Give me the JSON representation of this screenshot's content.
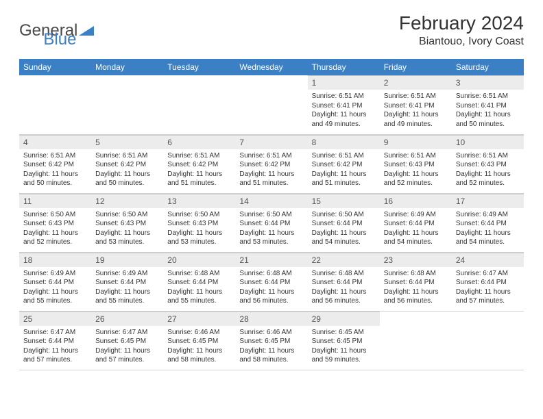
{
  "logo": {
    "text1": "General",
    "text2": "Blue"
  },
  "title": "February 2024",
  "location": "Biantouo, Ivory Coast",
  "colors": {
    "header_bg": "#3b7fc4",
    "header_fg": "#ffffff",
    "daynum_bg": "#ececec",
    "border": "#c8c8c8",
    "text": "#333333",
    "page_bg": "#ffffff"
  },
  "weekdays": [
    "Sunday",
    "Monday",
    "Tuesday",
    "Wednesday",
    "Thursday",
    "Friday",
    "Saturday"
  ],
  "weeks": [
    [
      {
        "n": "",
        "l1": "",
        "l2": "",
        "l3": "",
        "l4": ""
      },
      {
        "n": "",
        "l1": "",
        "l2": "",
        "l3": "",
        "l4": ""
      },
      {
        "n": "",
        "l1": "",
        "l2": "",
        "l3": "",
        "l4": ""
      },
      {
        "n": "",
        "l1": "",
        "l2": "",
        "l3": "",
        "l4": ""
      },
      {
        "n": "1",
        "l1": "Sunrise: 6:51 AM",
        "l2": "Sunset: 6:41 PM",
        "l3": "Daylight: 11 hours",
        "l4": "and 49 minutes."
      },
      {
        "n": "2",
        "l1": "Sunrise: 6:51 AM",
        "l2": "Sunset: 6:41 PM",
        "l3": "Daylight: 11 hours",
        "l4": "and 49 minutes."
      },
      {
        "n": "3",
        "l1": "Sunrise: 6:51 AM",
        "l2": "Sunset: 6:41 PM",
        "l3": "Daylight: 11 hours",
        "l4": "and 50 minutes."
      }
    ],
    [
      {
        "n": "4",
        "l1": "Sunrise: 6:51 AM",
        "l2": "Sunset: 6:42 PM",
        "l3": "Daylight: 11 hours",
        "l4": "and 50 minutes."
      },
      {
        "n": "5",
        "l1": "Sunrise: 6:51 AM",
        "l2": "Sunset: 6:42 PM",
        "l3": "Daylight: 11 hours",
        "l4": "and 50 minutes."
      },
      {
        "n": "6",
        "l1": "Sunrise: 6:51 AM",
        "l2": "Sunset: 6:42 PM",
        "l3": "Daylight: 11 hours",
        "l4": "and 51 minutes."
      },
      {
        "n": "7",
        "l1": "Sunrise: 6:51 AM",
        "l2": "Sunset: 6:42 PM",
        "l3": "Daylight: 11 hours",
        "l4": "and 51 minutes."
      },
      {
        "n": "8",
        "l1": "Sunrise: 6:51 AM",
        "l2": "Sunset: 6:42 PM",
        "l3": "Daylight: 11 hours",
        "l4": "and 51 minutes."
      },
      {
        "n": "9",
        "l1": "Sunrise: 6:51 AM",
        "l2": "Sunset: 6:43 PM",
        "l3": "Daylight: 11 hours",
        "l4": "and 52 minutes."
      },
      {
        "n": "10",
        "l1": "Sunrise: 6:51 AM",
        "l2": "Sunset: 6:43 PM",
        "l3": "Daylight: 11 hours",
        "l4": "and 52 minutes."
      }
    ],
    [
      {
        "n": "11",
        "l1": "Sunrise: 6:50 AM",
        "l2": "Sunset: 6:43 PM",
        "l3": "Daylight: 11 hours",
        "l4": "and 52 minutes."
      },
      {
        "n": "12",
        "l1": "Sunrise: 6:50 AM",
        "l2": "Sunset: 6:43 PM",
        "l3": "Daylight: 11 hours",
        "l4": "and 53 minutes."
      },
      {
        "n": "13",
        "l1": "Sunrise: 6:50 AM",
        "l2": "Sunset: 6:43 PM",
        "l3": "Daylight: 11 hours",
        "l4": "and 53 minutes."
      },
      {
        "n": "14",
        "l1": "Sunrise: 6:50 AM",
        "l2": "Sunset: 6:44 PM",
        "l3": "Daylight: 11 hours",
        "l4": "and 53 minutes."
      },
      {
        "n": "15",
        "l1": "Sunrise: 6:50 AM",
        "l2": "Sunset: 6:44 PM",
        "l3": "Daylight: 11 hours",
        "l4": "and 54 minutes."
      },
      {
        "n": "16",
        "l1": "Sunrise: 6:49 AM",
        "l2": "Sunset: 6:44 PM",
        "l3": "Daylight: 11 hours",
        "l4": "and 54 minutes."
      },
      {
        "n": "17",
        "l1": "Sunrise: 6:49 AM",
        "l2": "Sunset: 6:44 PM",
        "l3": "Daylight: 11 hours",
        "l4": "and 54 minutes."
      }
    ],
    [
      {
        "n": "18",
        "l1": "Sunrise: 6:49 AM",
        "l2": "Sunset: 6:44 PM",
        "l3": "Daylight: 11 hours",
        "l4": "and 55 minutes."
      },
      {
        "n": "19",
        "l1": "Sunrise: 6:49 AM",
        "l2": "Sunset: 6:44 PM",
        "l3": "Daylight: 11 hours",
        "l4": "and 55 minutes."
      },
      {
        "n": "20",
        "l1": "Sunrise: 6:48 AM",
        "l2": "Sunset: 6:44 PM",
        "l3": "Daylight: 11 hours",
        "l4": "and 55 minutes."
      },
      {
        "n": "21",
        "l1": "Sunrise: 6:48 AM",
        "l2": "Sunset: 6:44 PM",
        "l3": "Daylight: 11 hours",
        "l4": "and 56 minutes."
      },
      {
        "n": "22",
        "l1": "Sunrise: 6:48 AM",
        "l2": "Sunset: 6:44 PM",
        "l3": "Daylight: 11 hours",
        "l4": "and 56 minutes."
      },
      {
        "n": "23",
        "l1": "Sunrise: 6:48 AM",
        "l2": "Sunset: 6:44 PM",
        "l3": "Daylight: 11 hours",
        "l4": "and 56 minutes."
      },
      {
        "n": "24",
        "l1": "Sunrise: 6:47 AM",
        "l2": "Sunset: 6:44 PM",
        "l3": "Daylight: 11 hours",
        "l4": "and 57 minutes."
      }
    ],
    [
      {
        "n": "25",
        "l1": "Sunrise: 6:47 AM",
        "l2": "Sunset: 6:44 PM",
        "l3": "Daylight: 11 hours",
        "l4": "and 57 minutes."
      },
      {
        "n": "26",
        "l1": "Sunrise: 6:47 AM",
        "l2": "Sunset: 6:45 PM",
        "l3": "Daylight: 11 hours",
        "l4": "and 57 minutes."
      },
      {
        "n": "27",
        "l1": "Sunrise: 6:46 AM",
        "l2": "Sunset: 6:45 PM",
        "l3": "Daylight: 11 hours",
        "l4": "and 58 minutes."
      },
      {
        "n": "28",
        "l1": "Sunrise: 6:46 AM",
        "l2": "Sunset: 6:45 PM",
        "l3": "Daylight: 11 hours",
        "l4": "and 58 minutes."
      },
      {
        "n": "29",
        "l1": "Sunrise: 6:45 AM",
        "l2": "Sunset: 6:45 PM",
        "l3": "Daylight: 11 hours",
        "l4": "and 59 minutes."
      },
      {
        "n": "",
        "l1": "",
        "l2": "",
        "l3": "",
        "l4": ""
      },
      {
        "n": "",
        "l1": "",
        "l2": "",
        "l3": "",
        "l4": ""
      }
    ]
  ]
}
